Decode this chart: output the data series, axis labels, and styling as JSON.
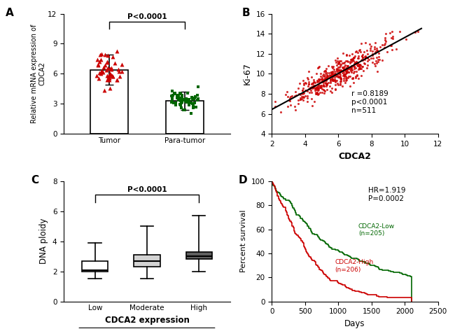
{
  "panel_A": {
    "tumor_mean": 6.4,
    "tumor_sd": 1.5,
    "paratumor_mean": 3.3,
    "paratumor_sd": 0.9,
    "tumor_n": 50,
    "paratumor_n": 60,
    "ylabel": "Relative mRNA expression of\nCDCA2",
    "ylim": [
      0,
      12
    ],
    "yticks": [
      0,
      3,
      6,
      9,
      12
    ],
    "pvalue": "P<0.0001",
    "categories": [
      "Tumor",
      "Para-tumor"
    ],
    "tumor_color": "#cc0000",
    "paratumor_color": "#006600"
  },
  "panel_B": {
    "n": 511,
    "r": 0.8189,
    "xlabel": "CDCA2",
    "ylabel": "Ki-67",
    "xlim": [
      2,
      12
    ],
    "ylim": [
      4,
      16
    ],
    "xticks": [
      2,
      4,
      6,
      8,
      10,
      12
    ],
    "yticks": [
      4,
      6,
      8,
      10,
      12,
      14,
      16
    ],
    "dot_color": "#cc0000",
    "line_color": "#000000",
    "annotation": "r =0.8189\np<0.0001\nn=511",
    "seed": 42,
    "x_mean": 6.0,
    "x_sd": 1.5,
    "slope": 0.9,
    "intercept": 4.6,
    "scatter_noise": 0.7
  },
  "panel_C": {
    "ylabel": "DNA ploidy",
    "xlabel": "CDCA2 expression",
    "categories": [
      "Low",
      "Moderate",
      "High"
    ],
    "ylim": [
      0,
      8
    ],
    "yticks": [
      0,
      2,
      4,
      6,
      8
    ],
    "pvalue": "P<0.0001",
    "box_data": {
      "Low": {
        "q1": 2.0,
        "median": 2.1,
        "q3": 2.7,
        "whislo": 1.5,
        "whishi": 3.9
      },
      "Moderate": {
        "q1": 2.3,
        "median": 2.7,
        "q3": 3.1,
        "whislo": 1.5,
        "whishi": 5.0
      },
      "High": {
        "q1": 2.8,
        "median": 3.0,
        "q3": 3.3,
        "whislo": 2.0,
        "whishi": 5.7
      }
    },
    "box_colors": [
      "#ffffff",
      "#d3d3d3",
      "#606060"
    ]
  },
  "panel_D": {
    "ylabel": "Percent survival",
    "xlabel": "Days",
    "xlim": [
      0,
      2500
    ],
    "ylim": [
      0,
      100
    ],
    "xticks": [
      0,
      500,
      1000,
      1500,
      2000,
      2500
    ],
    "yticks": [
      0,
      20,
      40,
      60,
      80,
      100
    ],
    "HR": "1.919",
    "pvalue": "P=0.0002",
    "low_n": 205,
    "high_n": 206,
    "low_color": "#006600",
    "high_color": "#cc0000",
    "seed": 123
  }
}
